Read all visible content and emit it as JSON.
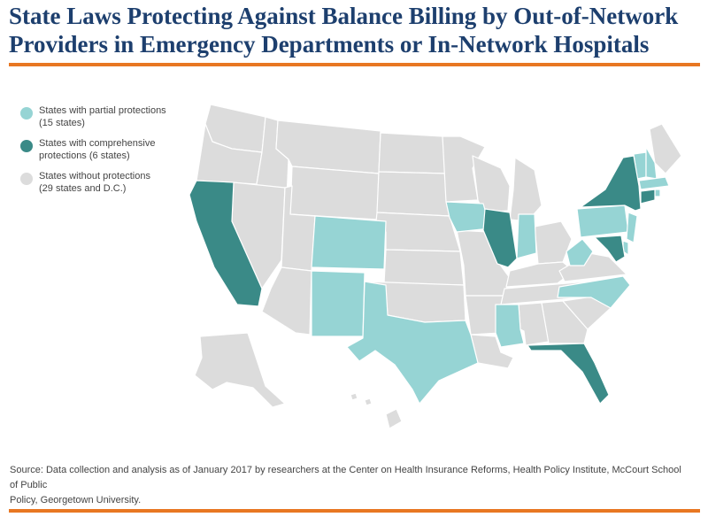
{
  "title": {
    "line1": "State Laws Protecting Against Balance Billing by Out-of-Network",
    "line2": "Providers in Emergency Departments or In-Network Hospitals"
  },
  "legend": [
    {
      "label_line1": "States with partial protections",
      "label_line2": "(15 states)",
      "color": "#96d4d4"
    },
    {
      "label_line1": "States with comprehensive",
      "label_line2": "protections (6 states)",
      "color": "#3a8a87"
    },
    {
      "label_line1": "States without protections",
      "label_line2": "(29 states and D.C.)",
      "color": "#dcdcdc"
    }
  ],
  "map": {
    "colors": {
      "none": "#dcdcdc",
      "partial": "#96d4d4",
      "comprehensive": "#3a8a87",
      "border": "#ffffff"
    },
    "comprehensive_states": [
      "California",
      "Illinois",
      "New York",
      "Connecticut",
      "Maryland",
      "Florida"
    ],
    "partial_states": [
      "Colorado",
      "New Mexico",
      "Texas",
      "Iowa",
      "Indiana",
      "Mississippi",
      "West Virginia",
      "North Carolina",
      "Pennsylvania",
      "New Jersey",
      "Delaware",
      "Vermont",
      "New Hampshire",
      "Massachusetts",
      "Rhode Island"
    ]
  },
  "source": {
    "line1": "Source: Data collection and analysis as of January 2017 by researchers at the Center on Health Insurance Reforms, Health Policy Institute, McCourt School of Public",
    "line2": "Policy, Georgetown University."
  }
}
